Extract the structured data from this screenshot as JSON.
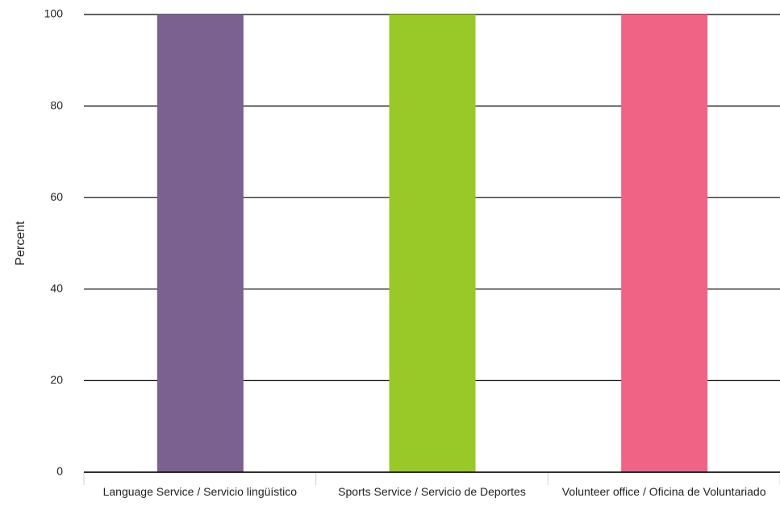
{
  "chart_data": {
    "type": "bar",
    "ylabel": "Percent",
    "categories": [
      "Language Service / Servicio lingüístico",
      "Sports Service / Servicio de Deportes",
      "Volunteer office / Oficina de Voluntariado"
    ],
    "values": [
      100,
      100,
      100
    ],
    "colors": [
      "#7b618f",
      "#99c928",
      "#f06384"
    ],
    "ylim": [
      0,
      100
    ],
    "yticks": [
      0,
      20,
      40,
      60,
      80,
      100
    ],
    "grid": true
  }
}
